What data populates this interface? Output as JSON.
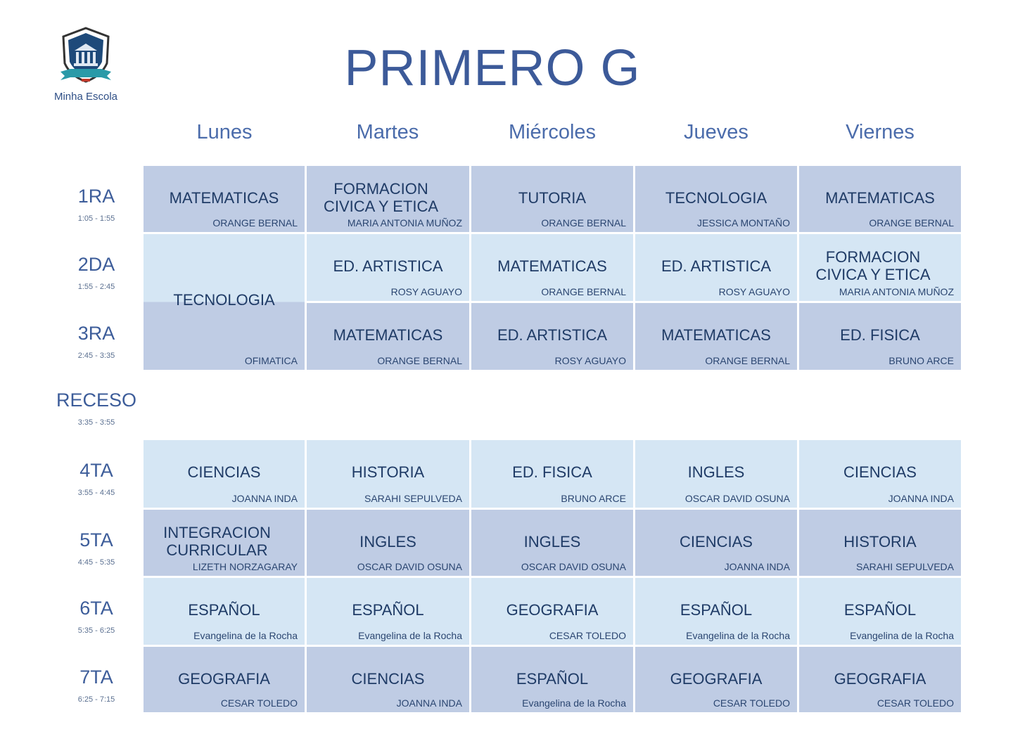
{
  "logo": {
    "emblem_text": "University",
    "name": "Minha Escola"
  },
  "title": "PRIMERO G",
  "days": [
    "Lunes",
    "Martes",
    "Miércoles",
    "Jueves",
    "Viernes"
  ],
  "periods": [
    {
      "label": "1RA",
      "time": "1:05 - 1:55"
    },
    {
      "label": "2DA",
      "time": "1:55 - 2:45"
    },
    {
      "label": "3RA",
      "time": "2:45 - 3:35"
    },
    {
      "label": "RECESO",
      "time": "3:35 - 3:55"
    },
    {
      "label": "4TA",
      "time": "3:55 - 4:45"
    },
    {
      "label": "5TA",
      "time": "4:45 - 5:35"
    },
    {
      "label": "6TA",
      "time": "5:35 - 6:25"
    },
    {
      "label": "7TA",
      "time": "6:25 - 7:15"
    }
  ],
  "colors": {
    "dark_cell": "#bfcce4",
    "light_cell": "#d5e6f4",
    "title": "#3c5a99",
    "subject": "#1f3b66"
  },
  "schedule": [
    [
      {
        "subject": "MATEMATICAS",
        "teacher": "ORANGE BERNAL"
      },
      {
        "subject": "FORMACION CIVICA Y ETICA",
        "teacher": "MARIA ANTONIA MUÑOZ"
      },
      {
        "subject": "TUTORIA",
        "teacher": "ORANGE BERNAL"
      },
      {
        "subject": "TECNOLOGIA",
        "teacher": "JESSICA MONTAÑO"
      },
      {
        "subject": "MATEMATICAS",
        "teacher": "ORANGE BERNAL"
      }
    ],
    [
      {
        "subject": "TECNOLOGIA",
        "teacher": "OFIMATICA",
        "span": 2
      },
      {
        "subject": "ED. ARTISTICA",
        "teacher": "ROSY AGUAYO"
      },
      {
        "subject": "MATEMATICAS",
        "teacher": "ORANGE BERNAL"
      },
      {
        "subject": "ED. ARTISTICA",
        "teacher": "ROSY AGUAYO"
      },
      {
        "subject": "FORMACION CIVICA Y ETICA",
        "teacher": "MARIA ANTONIA MUÑOZ"
      }
    ],
    [
      null,
      {
        "subject": "MATEMATICAS",
        "teacher": "ORANGE BERNAL"
      },
      {
        "subject": "ED. ARTISTICA",
        "teacher": "ROSY AGUAYO"
      },
      {
        "subject": "MATEMATICAS",
        "teacher": "ORANGE BERNAL"
      },
      {
        "subject": "ED. FISICA",
        "teacher": "BRUNO ARCE"
      }
    ],
    null,
    [
      {
        "subject": "CIENCIAS",
        "teacher": "JOANNA INDA"
      },
      {
        "subject": "HISTORIA",
        "teacher": "SARAHI SEPULVEDA"
      },
      {
        "subject": "ED. FISICA",
        "teacher": "BRUNO ARCE"
      },
      {
        "subject": "INGLES",
        "teacher": "OSCAR DAVID OSUNA"
      },
      {
        "subject": "CIENCIAS",
        "teacher": "JOANNA INDA"
      }
    ],
    [
      {
        "subject": "INTEGRACION CURRICULAR",
        "teacher": "LIZETH NORZAGARAY"
      },
      {
        "subject": "INGLES",
        "teacher": "OSCAR DAVID OSUNA"
      },
      {
        "subject": "INGLES",
        "teacher": "OSCAR DAVID OSUNA"
      },
      {
        "subject": "CIENCIAS",
        "teacher": "JOANNA INDA"
      },
      {
        "subject": "HISTORIA",
        "teacher": "SARAHI SEPULVEDA"
      }
    ],
    [
      {
        "subject": "ESPAÑOL",
        "teacher": "Evangelina de la Rocha"
      },
      {
        "subject": "ESPAÑOL",
        "teacher": "Evangelina de la Rocha"
      },
      {
        "subject": "GEOGRAFIA",
        "teacher": "CESAR TOLEDO"
      },
      {
        "subject": "ESPAÑOL",
        "teacher": "Evangelina de la Rocha"
      },
      {
        "subject": "ESPAÑOL",
        "teacher": "Evangelina de la Rocha"
      }
    ],
    [
      {
        "subject": "GEOGRAFIA",
        "teacher": "CESAR TOLEDO"
      },
      {
        "subject": "CIENCIAS",
        "teacher": "JOANNA INDA"
      },
      {
        "subject": "ESPAÑOL",
        "teacher": "Evangelina de la Rocha"
      },
      {
        "subject": "GEOGRAFIA",
        "teacher": "CESAR TOLEDO"
      },
      {
        "subject": "GEOGRAFIA",
        "teacher": "CESAR TOLEDO"
      }
    ]
  ]
}
